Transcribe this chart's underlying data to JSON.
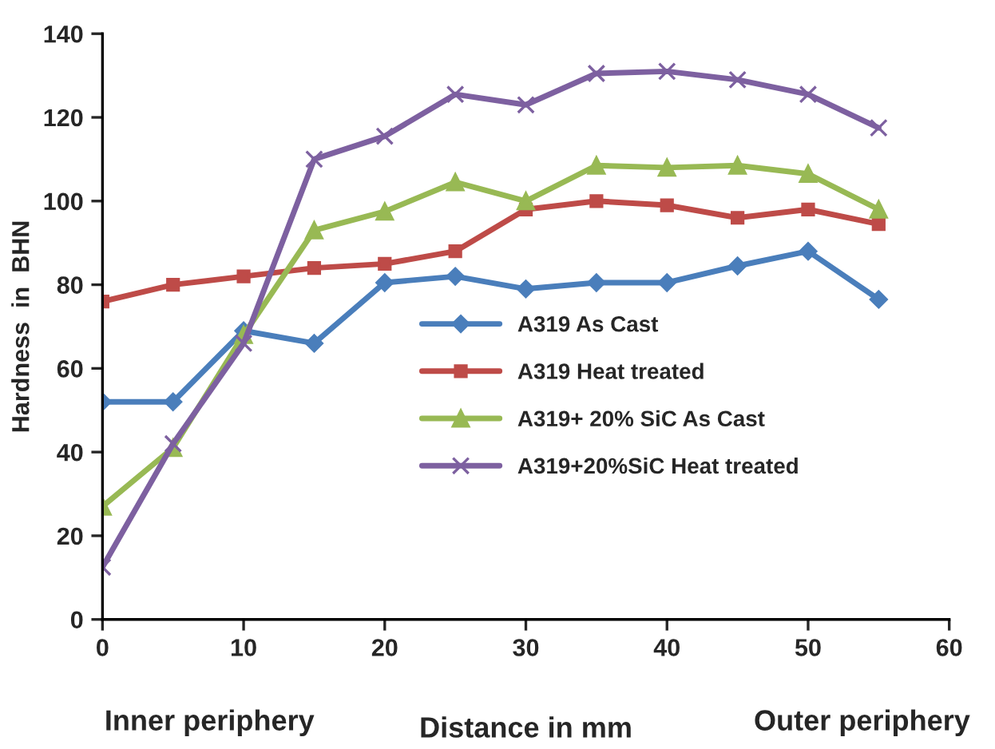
{
  "chart_data": {
    "type": "line",
    "xlabel": "Distance in mm",
    "ylabel": "Hardness  in  BHN",
    "x": [
      0,
      5,
      10,
      15,
      20,
      25,
      30,
      35,
      40,
      45,
      50,
      55
    ],
    "series": [
      {
        "name": "A319 As Cast",
        "color": "#4a7ebb",
        "marker": "diamond",
        "values": [
          52,
          52,
          69,
          66,
          80.5,
          82,
          79,
          80.5,
          80.5,
          84.5,
          88,
          76.5
        ]
      },
      {
        "name": "A319 Heat treated",
        "color": "#be4b48",
        "marker": "square",
        "values": [
          76,
          80,
          82,
          84,
          85,
          88,
          98,
          100,
          99,
          96,
          98,
          94.5
        ]
      },
      {
        "name": "A319+ 20% SiC As Cast",
        "color": "#98b954",
        "marker": "triangle",
        "values": [
          27,
          41,
          68,
          93,
          97.5,
          104.5,
          100,
          108.5,
          108,
          108.5,
          106.5,
          98
        ]
      },
      {
        "name": "A319+20%SiC Heat treated",
        "color": "#7d60a0",
        "marker": "cross",
        "values": [
          12.5,
          42,
          66,
          110,
          115.5,
          125.5,
          123,
          130.5,
          131,
          129,
          125.5,
          117.5
        ]
      }
    ],
    "xlim": [
      0,
      60
    ],
    "xticks": [
      0,
      10,
      20,
      30,
      40,
      50,
      60
    ],
    "ylim": [
      0,
      140
    ],
    "yticks": [
      0,
      20,
      40,
      60,
      80,
      100,
      120,
      140
    ],
    "grid": false,
    "legend": "center",
    "annotations": [
      "Inner periphery",
      "Outer periphery"
    ]
  }
}
